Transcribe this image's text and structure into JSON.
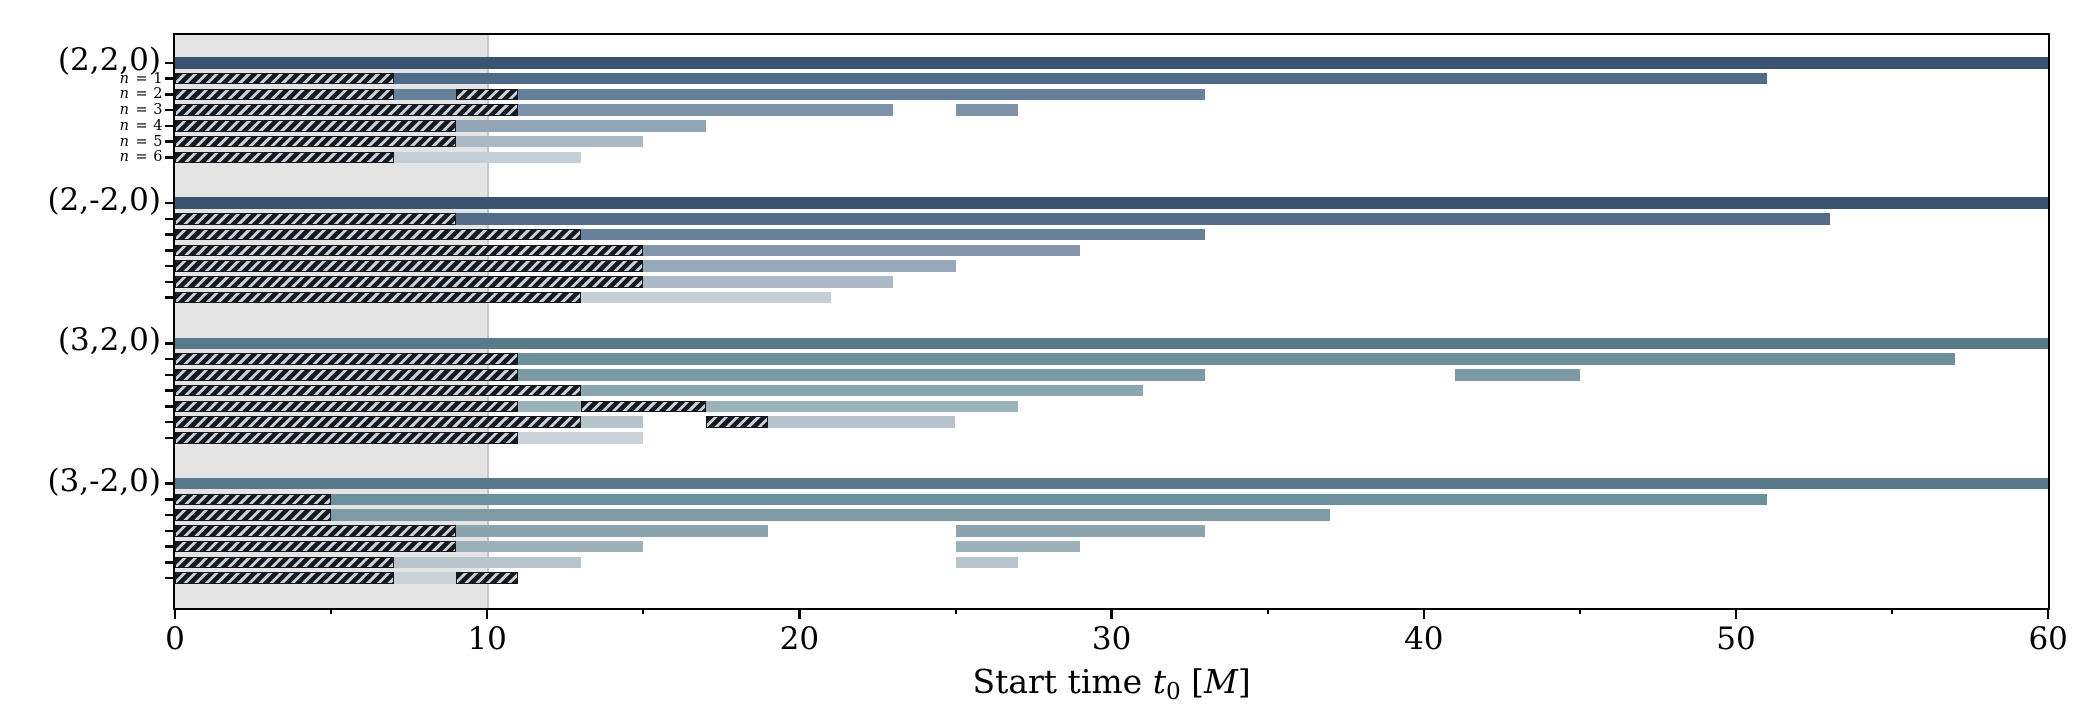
{
  "figure": {
    "xlabel": "Start time t0 [M]",
    "xlabel_parts": [
      {
        "text": "Start time "
      },
      {
        "text": "t",
        "style": "italic"
      },
      {
        "text": "0",
        "style": "sub"
      },
      {
        "text": " ["
      },
      {
        "text": "M",
        "style": "italic"
      },
      {
        "text": "]"
      }
    ]
  },
  "chart_data": {
    "type": "bar",
    "orientation": "horizontal",
    "title": "",
    "xlabel": "Start time t0 [M]",
    "ylabel": "",
    "xlim": [
      0,
      60
    ],
    "xticks_major": [
      0,
      10,
      20,
      30,
      40,
      50,
      60
    ],
    "xticks_minor": [
      5,
      15,
      25,
      35,
      45,
      55
    ],
    "grid": false,
    "legend": "none",
    "shaded_region": {
      "xmin": 0,
      "xmax": 10,
      "color": "#e4e4e4",
      "edge_color": "#c6c6c6"
    },
    "hatch_style": {
      "foreground": "#15191d",
      "background": "#c9d3db",
      "pattern": "////"
    },
    "groups": [
      {
        "label": "(2,2,0)",
        "total": {
          "color": "#395370",
          "solids": [
            [
              0,
              60
            ]
          ],
          "hatches": []
        },
        "show_row_labels": true,
        "rows": [
          {
            "label": "n = 1",
            "color": "#4f6a87",
            "solids": [
              [
                0,
                51
              ]
            ],
            "hatches": [
              [
                0,
                7
              ]
            ]
          },
          {
            "label": "n = 2",
            "color": "#66809a",
            "solids": [
              [
                0,
                33
              ]
            ],
            "hatches": [
              [
                0,
                7
              ],
              [
                9,
                11
              ]
            ]
          },
          {
            "label": "n = 3",
            "color": "#7e93a8",
            "solids": [
              [
                0,
                23
              ],
              [
                25,
                27
              ]
            ],
            "hatches": [
              [
                0,
                11
              ]
            ]
          },
          {
            "label": "n = 4",
            "color": "#92a5b6",
            "solids": [
              [
                0,
                17
              ]
            ],
            "hatches": [
              [
                0,
                9
              ]
            ]
          },
          {
            "label": "n = 5",
            "color": "#a9b9c6",
            "solids": [
              [
                0,
                15
              ]
            ],
            "hatches": [
              [
                0,
                9
              ]
            ]
          },
          {
            "label": "n = 6",
            "color": "#c5cfd8",
            "solids": [
              [
                0,
                13
              ]
            ],
            "hatches": [
              [
                0,
                7
              ]
            ]
          }
        ]
      },
      {
        "label": "(2,-2,0)",
        "total": {
          "color": "#395370",
          "solids": [
            [
              0,
              60
            ]
          ],
          "hatches": []
        },
        "show_row_labels": false,
        "rows": [
          {
            "label": "n = 1",
            "color": "#516b88",
            "solids": [
              [
                0,
                53
              ]
            ],
            "hatches": [
              [
                0,
                9
              ]
            ]
          },
          {
            "label": "n = 2",
            "color": "#67819b",
            "solids": [
              [
                0,
                33
              ]
            ],
            "hatches": [
              [
                0,
                13
              ]
            ]
          },
          {
            "label": "n = 3",
            "color": "#8295a9",
            "solids": [
              [
                0,
                29
              ]
            ],
            "hatches": [
              [
                0,
                15
              ]
            ]
          },
          {
            "label": "n = 4",
            "color": "#97a8b8",
            "solids": [
              [
                0,
                25
              ]
            ],
            "hatches": [
              [
                0,
                15
              ]
            ]
          },
          {
            "label": "n = 5",
            "color": "#abbac6",
            "solids": [
              [
                0,
                23
              ]
            ],
            "hatches": [
              [
                0,
                15
              ]
            ]
          },
          {
            "label": "n = 6",
            "color": "#c6cfd8",
            "solids": [
              [
                0,
                21
              ]
            ],
            "hatches": [
              [
                0,
                13
              ]
            ]
          }
        ]
      },
      {
        "label": "(3,2,0)",
        "total": {
          "color": "#57798b",
          "solids": [
            [
              0,
              60
            ]
          ],
          "hatches": []
        },
        "show_row_labels": false,
        "rows": [
          {
            "label": "n = 1",
            "color": "#6b8f9b",
            "solids": [
              [
                0,
                57
              ]
            ],
            "hatches": [
              [
                0,
                11
              ]
            ]
          },
          {
            "label": "n = 2",
            "color": "#7b99a4",
            "solids": [
              [
                0,
                33
              ],
              [
                41,
                45
              ]
            ],
            "hatches": [
              [
                0,
                11
              ]
            ]
          },
          {
            "label": "n = 3",
            "color": "#8ba6ae",
            "solids": [
              [
                0,
                31
              ]
            ],
            "hatches": [
              [
                0,
                13
              ]
            ]
          },
          {
            "label": "n = 4",
            "color": "#9cb2b9",
            "solids": [
              [
                0,
                27
              ]
            ],
            "hatches": [
              [
                0,
                11
              ],
              [
                13,
                17
              ]
            ]
          },
          {
            "label": "n = 5",
            "color": "#b5c4ca",
            "solids": [
              [
                0,
                15
              ],
              [
                17,
                25
              ]
            ],
            "hatches": [
              [
                0,
                13
              ],
              [
                17,
                19
              ]
            ]
          },
          {
            "label": "n = 6",
            "color": "#c9d3d8",
            "solids": [
              [
                0,
                15
              ]
            ],
            "hatches": [
              [
                0,
                11
              ]
            ]
          }
        ]
      },
      {
        "label": "(3,-2,0)",
        "total": {
          "color": "#57798b",
          "solids": [
            [
              0,
              60
            ]
          ],
          "hatches": []
        },
        "show_row_labels": false,
        "rows": [
          {
            "label": "n = 1",
            "color": "#6b8f9b",
            "solids": [
              [
                0,
                51
              ]
            ],
            "hatches": [
              [
                0,
                5
              ]
            ]
          },
          {
            "label": "n = 2",
            "color": "#7e9aa5",
            "solids": [
              [
                0,
                37
              ]
            ],
            "hatches": [
              [
                0,
                5
              ]
            ]
          },
          {
            "label": "n = 3",
            "color": "#8ba4ad",
            "solids": [
              [
                0,
                19
              ],
              [
                25,
                33
              ]
            ],
            "hatches": [
              [
                0,
                9
              ]
            ]
          },
          {
            "label": "n = 4",
            "color": "#9cb1b9",
            "solids": [
              [
                0,
                15
              ],
              [
                25,
                29
              ]
            ],
            "hatches": [
              [
                0,
                9
              ]
            ]
          },
          {
            "label": "n = 5",
            "color": "#b7c4cb",
            "solids": [
              [
                0,
                13
              ],
              [
                25,
                27
              ]
            ],
            "hatches": [
              [
                0,
                7
              ]
            ]
          },
          {
            "label": "n = 6",
            "color": "#c9d2d7",
            "solids": [
              [
                0,
                11
              ]
            ],
            "hatches": [
              [
                0,
                7
              ],
              [
                9,
                11
              ]
            ]
          }
        ]
      }
    ]
  }
}
